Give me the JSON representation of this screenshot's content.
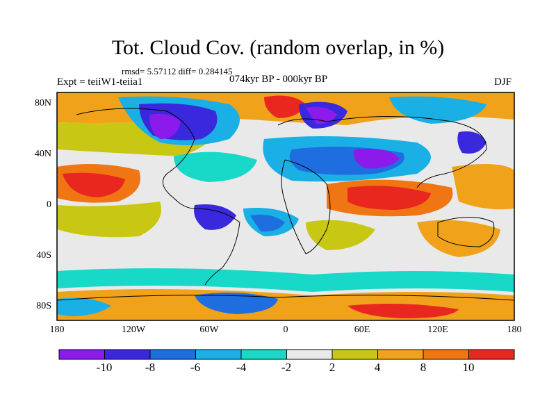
{
  "title": "Tot. Cloud Cov. (random overlap, in %)",
  "stats": "rmsd= 5.57112  diff= 0.284145",
  "experiment": "Expt = teiiW1-teiia1",
  "period": "074kyr BP - 000kyr BP",
  "season": "DJF",
  "axes": {
    "x_labels": [
      "180",
      "120W",
      "60W",
      "0",
      "60E",
      "120E",
      "180"
    ],
    "y_labels": [
      "80N",
      "40N",
      "0",
      "40S",
      "80S"
    ]
  },
  "colorbar": {
    "labels": [
      "-10",
      "-8",
      "-6",
      "-4",
      "-2",
      "2",
      "4",
      "8",
      "10"
    ],
    "colors": [
      "#8c1aeb",
      "#3a28dd",
      "#1f6ee0",
      "#1ab0e6",
      "#18d8c8",
      "#e9e9e9",
      "#c8c814",
      "#f0a21a",
      "#f07614",
      "#e8281e"
    ]
  },
  "map": {
    "projection": "cylindrical equidistant",
    "lon_range": [
      -180,
      180
    ],
    "lat_range": [
      -90,
      90
    ],
    "coastlines": true
  }
}
